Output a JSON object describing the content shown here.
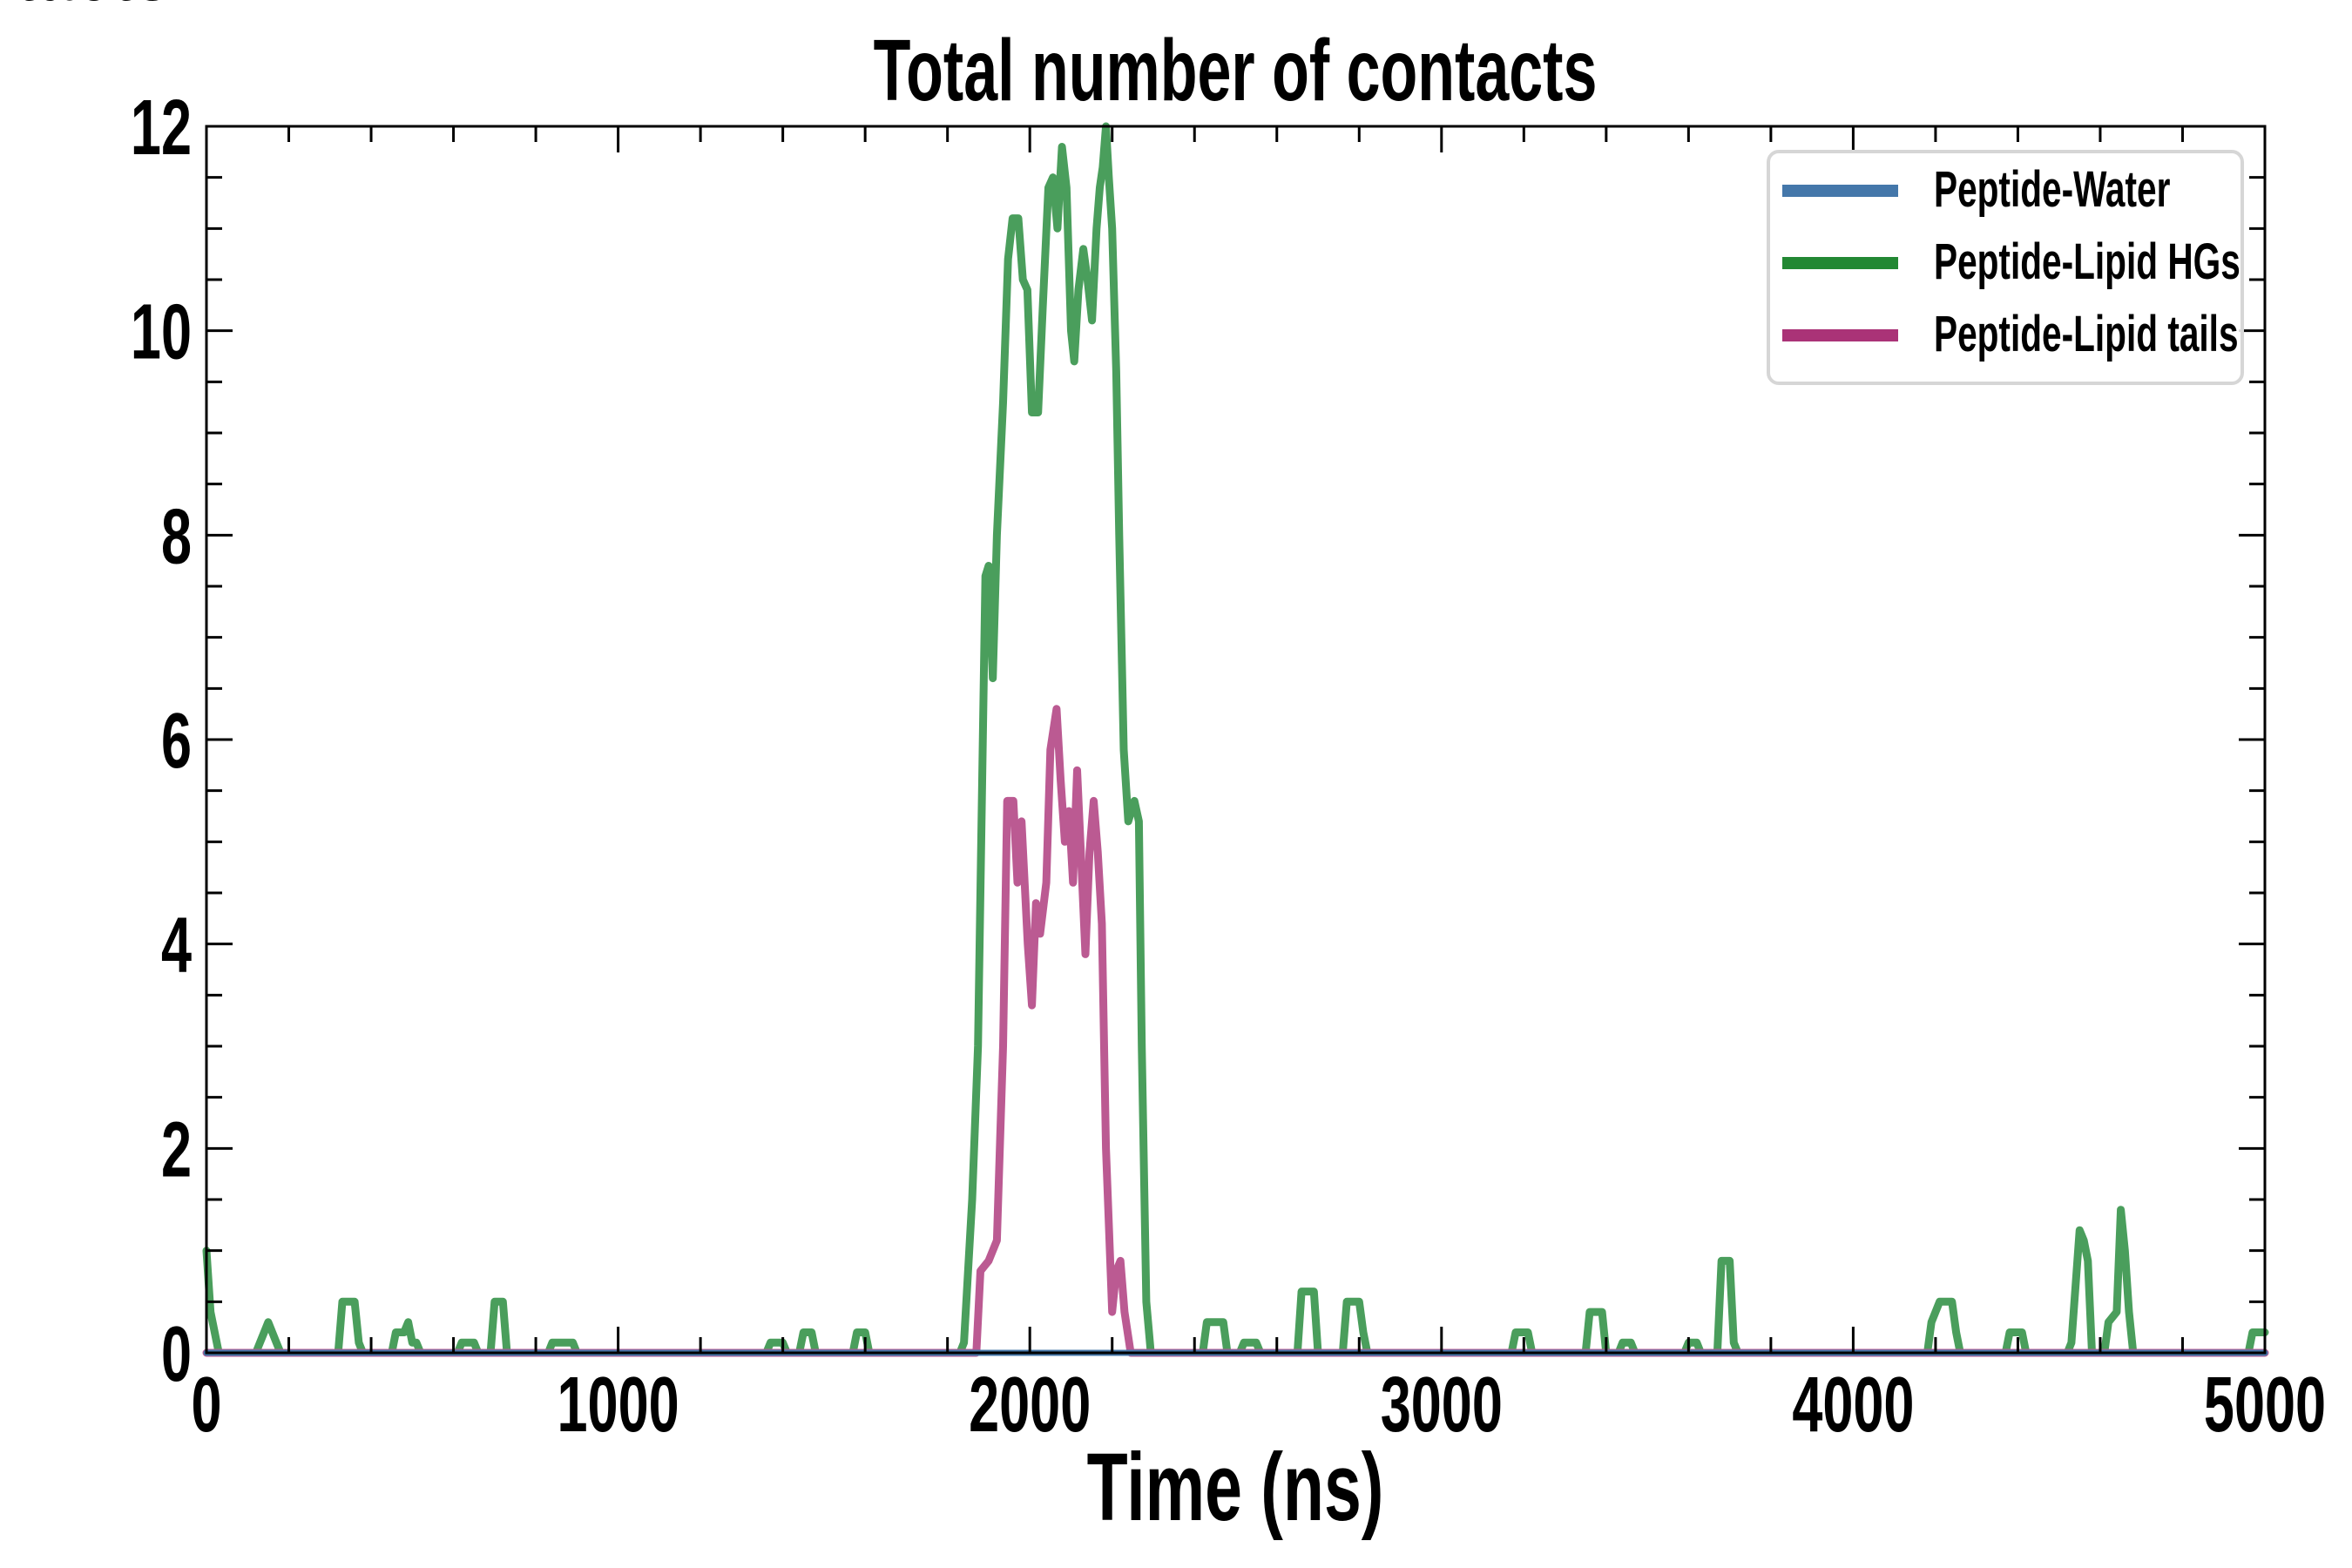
{
  "chart_data": {
    "type": "line",
    "title": "Total number of contacts",
    "xlabel": "Time (ns)",
    "ylabel": "# Contacts",
    "xlim": [
      0,
      5000
    ],
    "ylim": [
      0,
      12
    ],
    "xticks": [
      0,
      1000,
      2000,
      3000,
      4000,
      5000
    ],
    "yticks": [
      0,
      2,
      4,
      6,
      8,
      10,
      12
    ],
    "xtick_labels": [
      "0",
      "1000",
      "2000",
      "3000",
      "4000",
      "5000"
    ],
    "ytick_labels": [
      "0",
      "2",
      "4",
      "6",
      "8",
      "10",
      "12"
    ],
    "grid": false,
    "legend_position": "top-right",
    "series": [
      {
        "name": "Peptide-Water",
        "color": "#4477aa",
        "x": [
          0,
          5000
        ],
        "y": [
          0,
          0
        ]
      },
      {
        "name": "Peptide-Lipid HGs",
        "color": "#228833",
        "x": [
          0,
          10,
          30,
          120,
          130,
          140,
          150,
          160,
          170,
          180,
          320,
          330,
          360,
          370,
          380,
          450,
          460,
          480,
          490,
          500,
          510,
          520,
          610,
          620,
          650,
          660,
          690,
          700,
          720,
          730,
          830,
          840,
          890,
          900,
          1360,
          1370,
          1400,
          1410,
          1440,
          1450,
          1470,
          1480,
          1570,
          1580,
          1600,
          1610,
          1830,
          1840,
          1860,
          1874,
          1892,
          1900,
          1910,
          1920,
          1935,
          1947,
          1958,
          1972,
          1983,
          1994,
          2005,
          2020,
          2031,
          2045,
          2056,
          2067,
          2078,
          2089,
          2100,
          2108,
          2118,
          2130,
          2140,
          2151,
          2162,
          2170,
          2177,
          2185,
          2192,
          2200,
          2210,
          2217,
          2228,
          2239,
          2254,
          2265,
          2272,
          2283,
          2294,
          2302,
          2420,
          2430,
          2470,
          2480,
          2510,
          2520,
          2550,
          2560,
          2650,
          2660,
          2690,
          2700,
          2760,
          2770,
          2800,
          2810,
          2820,
          3170,
          3180,
          3210,
          3220,
          3350,
          3360,
          3390,
          3400,
          3430,
          3440,
          3460,
          3470,
          3590,
          3600,
          3620,
          3630,
          3670,
          3680,
          3700,
          3710,
          3720,
          4180,
          4190,
          4210,
          4240,
          4250,
          4260,
          4370,
          4380,
          4410,
          4420,
          4520,
          4530,
          4550,
          4560,
          4570,
          4580,
          4610,
          4620,
          4640,
          4650,
          4660,
          4670,
          4680,
          4960,
          4970,
          5000
        ],
        "y": [
          1.0,
          0.4,
          0,
          0,
          0.1,
          0.2,
          0.3,
          0.2,
          0.1,
          0,
          0,
          0.5,
          0.5,
          0.1,
          0,
          0,
          0.2,
          0.2,
          0.3,
          0.1,
          0.1,
          0,
          0,
          0.1,
          0.1,
          0,
          0,
          0.5,
          0.5,
          0,
          0,
          0.1,
          0.1,
          0,
          0,
          0.1,
          0.1,
          0,
          0,
          0.2,
          0.2,
          0,
          0,
          0.2,
          0.2,
          0,
          0,
          0.1,
          1.5,
          3.0,
          7.6,
          7.7,
          6.6,
          8.0,
          9.3,
          10.7,
          11.1,
          11.1,
          10.5,
          10.4,
          9.2,
          9.2,
          10.2,
          11.4,
          11.5,
          11.0,
          11.8,
          11.4,
          10.0,
          9.7,
          10.4,
          10.8,
          10.5,
          10.1,
          11.0,
          11.4,
          11.6,
          12.0,
          11.5,
          11.0,
          9.6,
          8.0,
          5.9,
          5.2,
          5.4,
          5.2,
          3.0,
          0.5,
          0,
          0,
          0,
          0.3,
          0.3,
          0,
          0,
          0.1,
          0.1,
          0,
          0,
          0.6,
          0.6,
          0,
          0,
          0.5,
          0.5,
          0.2,
          0,
          0,
          0.2,
          0.2,
          0,
          0,
          0.4,
          0.4,
          0,
          0,
          0.1,
          0.1,
          0,
          0,
          0.1,
          0.1,
          0,
          0,
          0.9,
          0.9,
          0.1,
          0,
          0,
          0.3,
          0.5,
          0.5,
          0.2,
          0,
          0,
          0.2,
          0.2,
          0,
          0,
          0.1,
          1.2,
          1.1,
          0.9,
          0,
          0,
          0.3,
          0.4,
          1.4,
          1.0,
          0.4,
          0,
          0,
          0.2,
          0.2
        ]
      },
      {
        "name": "Peptide-Lipid tails",
        "color": "#aa3377",
        "x": [
          0,
          1860,
          1870,
          1880,
          1900,
          1920,
          1935,
          1945,
          1960,
          1970,
          1980,
          1995,
          2005,
          2015,
          2025,
          2040,
          2050,
          2065,
          2075,
          2085,
          2095,
          2105,
          2115,
          2125,
          2135,
          2145,
          2155,
          2165,
          2175,
          2185,
          2200,
          2210,
          2220,
          2230,
          2245,
          5000
        ],
        "y": [
          0,
          0,
          0,
          0.8,
          0.9,
          1.1,
          3.0,
          5.4,
          5.4,
          4.6,
          5.2,
          4.0,
          3.4,
          4.4,
          4.1,
          4.6,
          5.9,
          6.3,
          5.6,
          5.0,
          5.3,
          4.6,
          5.7,
          4.8,
          3.9,
          4.9,
          5.4,
          4.9,
          4.2,
          2.0,
          0.4,
          0.8,
          0.9,
          0.4,
          0,
          0
        ]
      }
    ]
  }
}
